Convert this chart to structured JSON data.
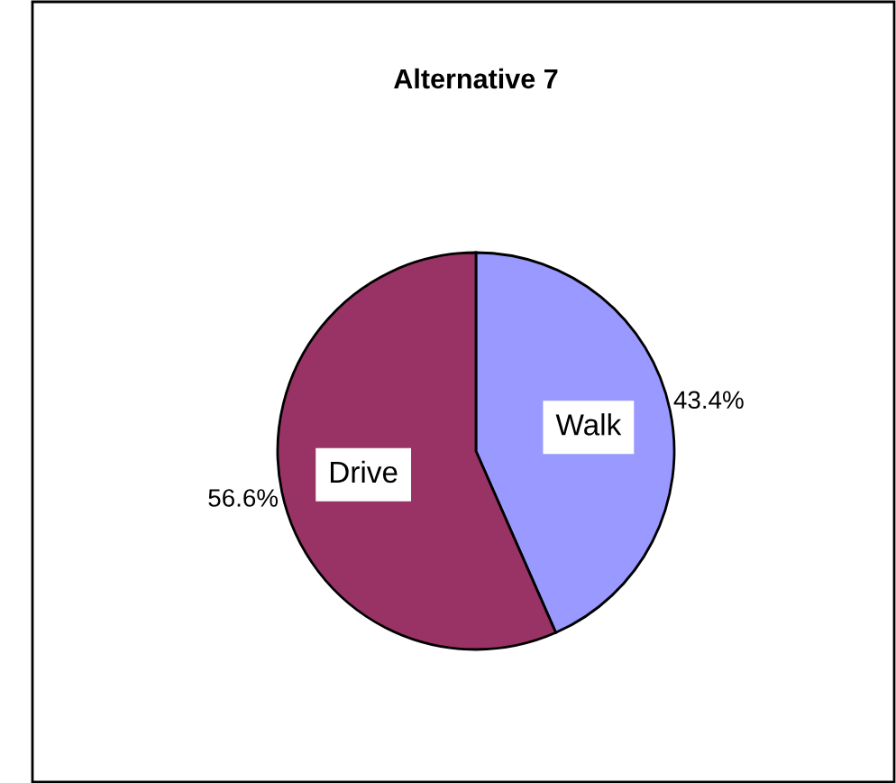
{
  "chart_data": {
    "type": "pie",
    "title": "Alternative 7",
    "categories": [
      "Walk",
      "Drive"
    ],
    "values": [
      43.4,
      56.6
    ],
    "colors": [
      "#9999ff",
      "#993366"
    ],
    "value_labels": [
      "43.4%",
      "56.6%"
    ],
    "legend": false
  }
}
